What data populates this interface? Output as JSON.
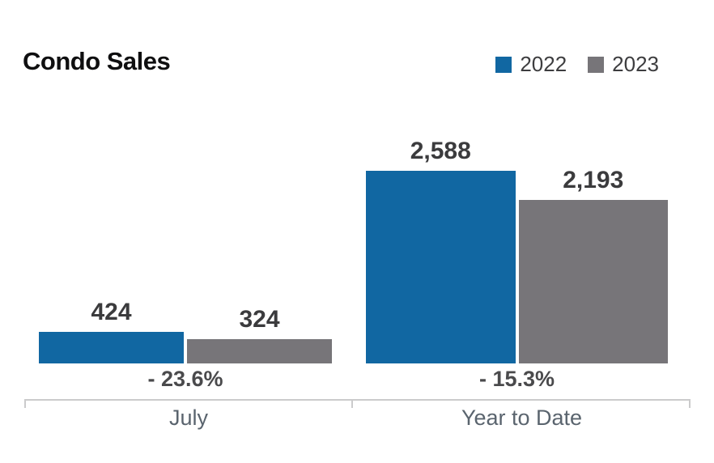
{
  "title": "Condo Sales",
  "colors": {
    "series_2022": "#1167a2",
    "series_2023": "#777579",
    "axis_line": "#cbcbcc",
    "value_label": "#3b3b3d",
    "category_label": "#5a646e"
  },
  "chart_data": {
    "type": "bar",
    "title": "Condo Sales",
    "categories": [
      "July",
      "Year to Date"
    ],
    "series": [
      {
        "name": "2022",
        "color": "#1167a2",
        "values": [
          424,
          2588
        ],
        "value_labels": [
          "424",
          "2,588"
        ]
      },
      {
        "name": "2023",
        "color": "#777579",
        "values": [
          324,
          2193
        ],
        "value_labels": [
          "324",
          "2,193"
        ]
      }
    ],
    "change_labels": [
      "- 23.6%",
      "- 15.3%"
    ],
    "ylim": [
      0,
      2588
    ],
    "grid": false,
    "legend_position": "top-right"
  }
}
